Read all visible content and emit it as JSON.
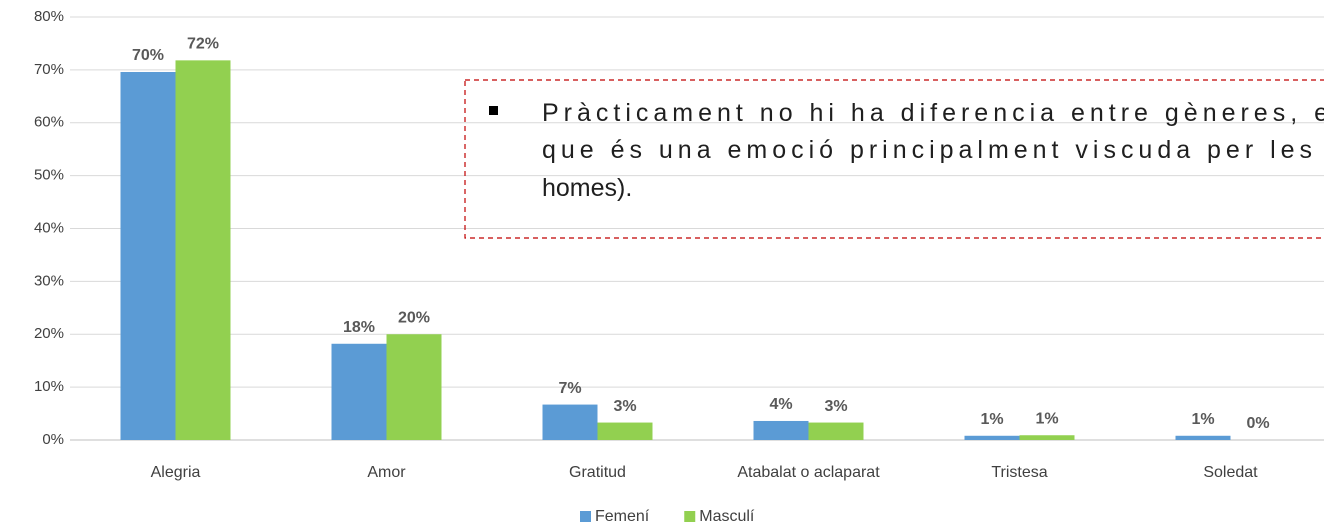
{
  "chart_data": {
    "type": "bar",
    "categories": [
      "Alegria",
      "Amor",
      "Gratitud",
      "Atabalat o aclaparat",
      "Tristesa",
      "Soledat"
    ],
    "series": [
      {
        "name": "Femení",
        "color": "#5b9bd5",
        "values": [
          69.6,
          18.2,
          6.7,
          3.6,
          0.8,
          0.8
        ],
        "value_labels": [
          "70%",
          "18%",
          "7%",
          "4%",
          "1%",
          "1%"
        ]
      },
      {
        "name": "Masculí",
        "color": "#92d050",
        "values": [
          71.8,
          20,
          3.3,
          3.3,
          0.9,
          0
        ],
        "value_labels": [
          "72%",
          "20%",
          "3%",
          "3%",
          "1%",
          "0%"
        ]
      }
    ],
    "ylim": [
      0,
      80
    ],
    "yticks": [
      {
        "value": 0,
        "label": "0%"
      },
      {
        "value": 10,
        "label": "10%"
      },
      {
        "value": 20,
        "label": "20%"
      },
      {
        "value": 30,
        "label": "30%"
      },
      {
        "value": 40,
        "label": "40%"
      },
      {
        "value": 50,
        "label": "50%"
      },
      {
        "value": 60,
        "label": "60%"
      },
      {
        "value": 70,
        "label": "70%"
      },
      {
        "value": 80,
        "label": "80%"
      }
    ],
    "grid": true,
    "legend": "bottom",
    "annotation": {
      "lines": [
        "Pràcticament no hi ha diferencia entre gèneres, e",
        "que és una emoció principalment viscuda per les",
        "homes)."
      ]
    }
  }
}
